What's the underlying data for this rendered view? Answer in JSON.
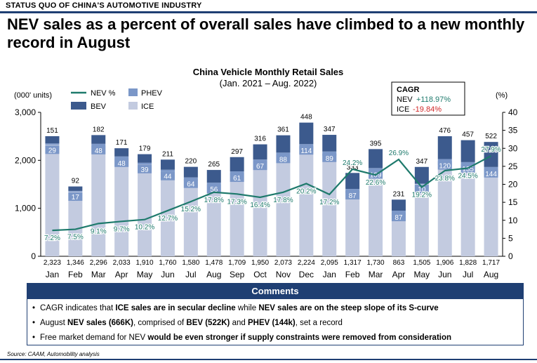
{
  "header": {
    "section": "STATUS QUO OF CHINA'S AUTOMOTIVE INDUSTRY",
    "headline": "NEV sales as a percent of overall sales have climbed to a new monthly record in August"
  },
  "chart_data": {
    "type": "bar",
    "title": "China Vehicle Monthly Retail Sales",
    "subtitle": "(Jan. 2021 – Aug. 2022)",
    "ylabel": "(000' units)",
    "y2label": "(%)",
    "ylim": [
      0,
      3000
    ],
    "y2lim": [
      0,
      40
    ],
    "yticks": [
      "0",
      "1,000",
      "2,000",
      "3,000"
    ],
    "y2ticks": [
      "0",
      "5",
      "10",
      "15",
      "20",
      "25",
      "30",
      "35",
      "40"
    ],
    "categories": [
      "Jan",
      "Feb",
      "Mar",
      "Apr",
      "May",
      "Jun",
      "Jul",
      "Aug",
      "Sep",
      "Oct",
      "Nov",
      "Dec",
      "Jan",
      "Feb",
      "Mar",
      "Apr",
      "May",
      "Jun",
      "Jul",
      "Aug"
    ],
    "ice": [
      2323,
      1346,
      2296,
      2033,
      1910,
      1760,
      1580,
      1478,
      1709,
      1950,
      2073,
      2224,
      2095,
      1317,
      1730,
      863,
      1505,
      1906,
      1828,
      1717
    ],
    "ice_labels": [
      "2,323",
      "1,346",
      "2,296",
      "2,033",
      "1,910",
      "1,760",
      "1,580",
      "1,478",
      "1,709",
      "1,950",
      "2,073",
      "2,224",
      "2,095",
      "1,317",
      "1,730",
      "863",
      "1,505",
      "1,906",
      "1,828",
      "1,717"
    ],
    "phev": [
      29,
      17,
      48,
      48,
      39,
      44,
      64,
      56,
      61,
      67,
      88,
      114,
      89,
      87,
      109,
      87,
      10,
      120,
      135,
      144
    ],
    "bev": [
      151,
      92,
      182,
      171,
      179,
      211,
      220,
      265,
      297,
      316,
      361,
      448,
      347,
      333,
      395,
      231,
      347,
      476,
      457,
      522
    ],
    "nev_pct": [
      7.2,
      7.5,
      9.1,
      9.7,
      10.2,
      12.7,
      15.2,
      17.8,
      17.3,
      16.4,
      17.8,
      20.2,
      17.2,
      24.2,
      22.6,
      26.9,
      19.2,
      23.8,
      24.5,
      27.9
    ],
    "nev_pct_labels": [
      "7.2%",
      "7.5%",
      "9.1%",
      "9.7%",
      "10.2%",
      "12.7%",
      "15.2%",
      "17.8%",
      "17.3%",
      "16.4%",
      "17.8%",
      "20.2%",
      "17.2%",
      "24.2%",
      "22.6%",
      "26.9%",
      "19.2%",
      "23.8%",
      "24.5%",
      "27.9%"
    ],
    "legend": {
      "nev": "NEV %",
      "phev": "PHEV",
      "bev": "BEV",
      "ice": "ICE"
    },
    "cagr": {
      "title": "CAGR",
      "nev_label": "NEV",
      "nev_value": "+118.97%",
      "ice_label": "ICE",
      "ice_value": "-19.84%"
    },
    "colors": {
      "ice": "#c3cbe0",
      "phev": "#7b97c8",
      "bev": "#3c5a8d",
      "nev": "#1e7a6c",
      "cagr_pos": "#1e7a6c",
      "cagr_neg": "#d12828",
      "axis": "#000000"
    }
  },
  "comments": {
    "title": "Comments",
    "items": [
      [
        {
          "t": "CAGR indicates that ",
          "b": false
        },
        {
          "t": "ICE sales are in secular decline",
          "b": true
        },
        {
          "t": " while ",
          "b": false
        },
        {
          "t": "NEV sales are on the steep slope of its S-curve",
          "b": true
        }
      ],
      [
        {
          "t": "August ",
          "b": false
        },
        {
          "t": "NEV sales (666K)",
          "b": true
        },
        {
          "t": ", comprised of ",
          "b": false
        },
        {
          "t": "BEV (522K)",
          "b": true
        },
        {
          "t": " and ",
          "b": false
        },
        {
          "t": "PHEV (144k)",
          "b": true
        },
        {
          "t": ", set a record",
          "b": false
        }
      ],
      [
        {
          "t": "Free market demand for NEV ",
          "b": false
        },
        {
          "t": "would be even stronger if supply constraints were removed from consideration",
          "b": true
        }
      ]
    ]
  },
  "source": "Source: CAAM, Automobility analysis"
}
